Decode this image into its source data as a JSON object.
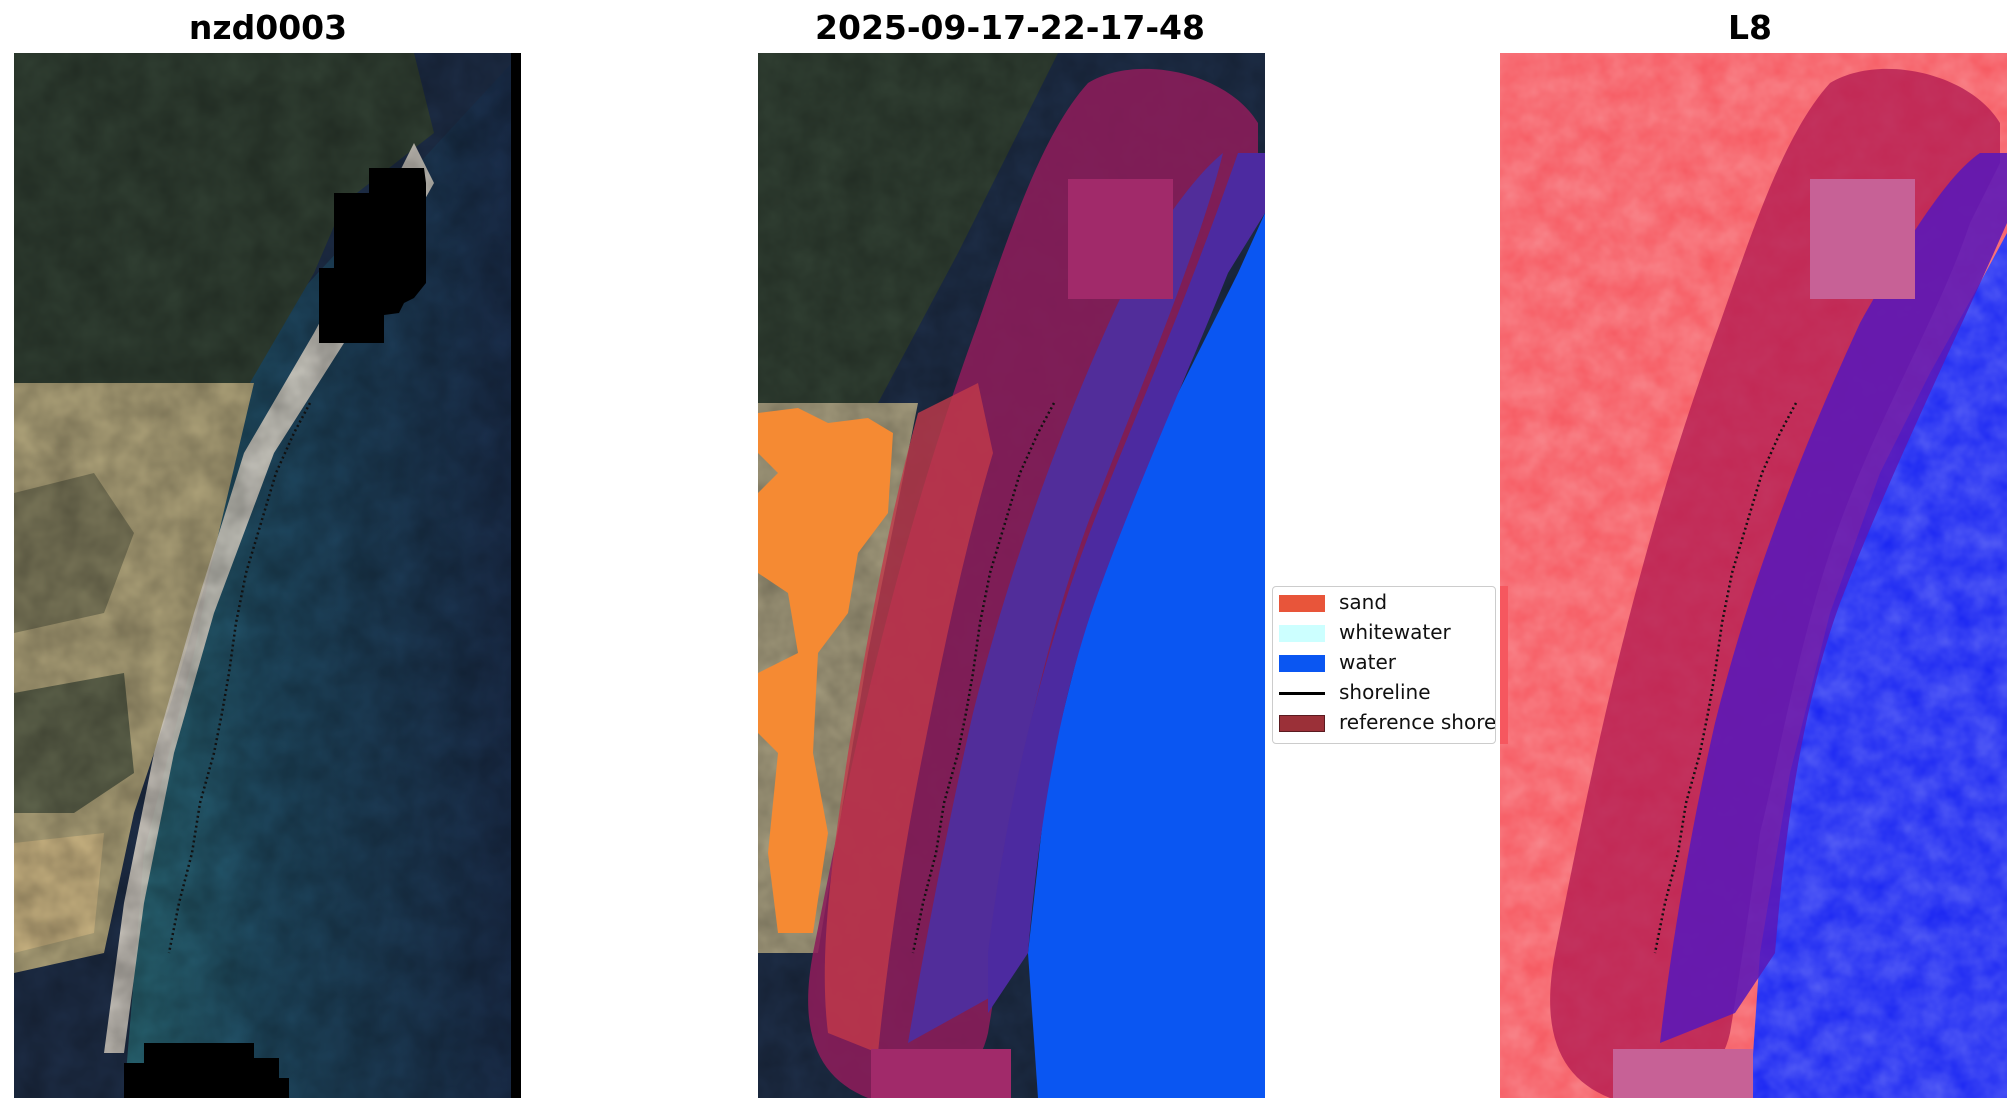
{
  "panels": [
    {
      "title": "nzd0003"
    },
    {
      "title": "2025-09-17-22-17-48"
    },
    {
      "title": "L8"
    }
  ],
  "legend": {
    "items": [
      {
        "label": "sand",
        "color": "#e8553a",
        "kind": "patch"
      },
      {
        "label": "whitewater",
        "color": "#ccffff",
        "kind": "patch"
      },
      {
        "label": "water",
        "color": "#0a56f2",
        "kind": "patch"
      },
      {
        "label": "shoreline",
        "color": "#000000",
        "kind": "line"
      },
      {
        "label": "reference shoreline buffer",
        "color": "#8b1a25",
        "kind": "patch"
      }
    ]
  },
  "colors": {
    "deep_water": "#1c2e4d",
    "dunes": "#b2a67c",
    "vegetation": "#3e4d36",
    "sand_class": "#f58a33",
    "water_class": "#0a56f2",
    "buffer": "#9a1a55",
    "index_red": "#f6575f",
    "index_blue": "#1622f2"
  }
}
